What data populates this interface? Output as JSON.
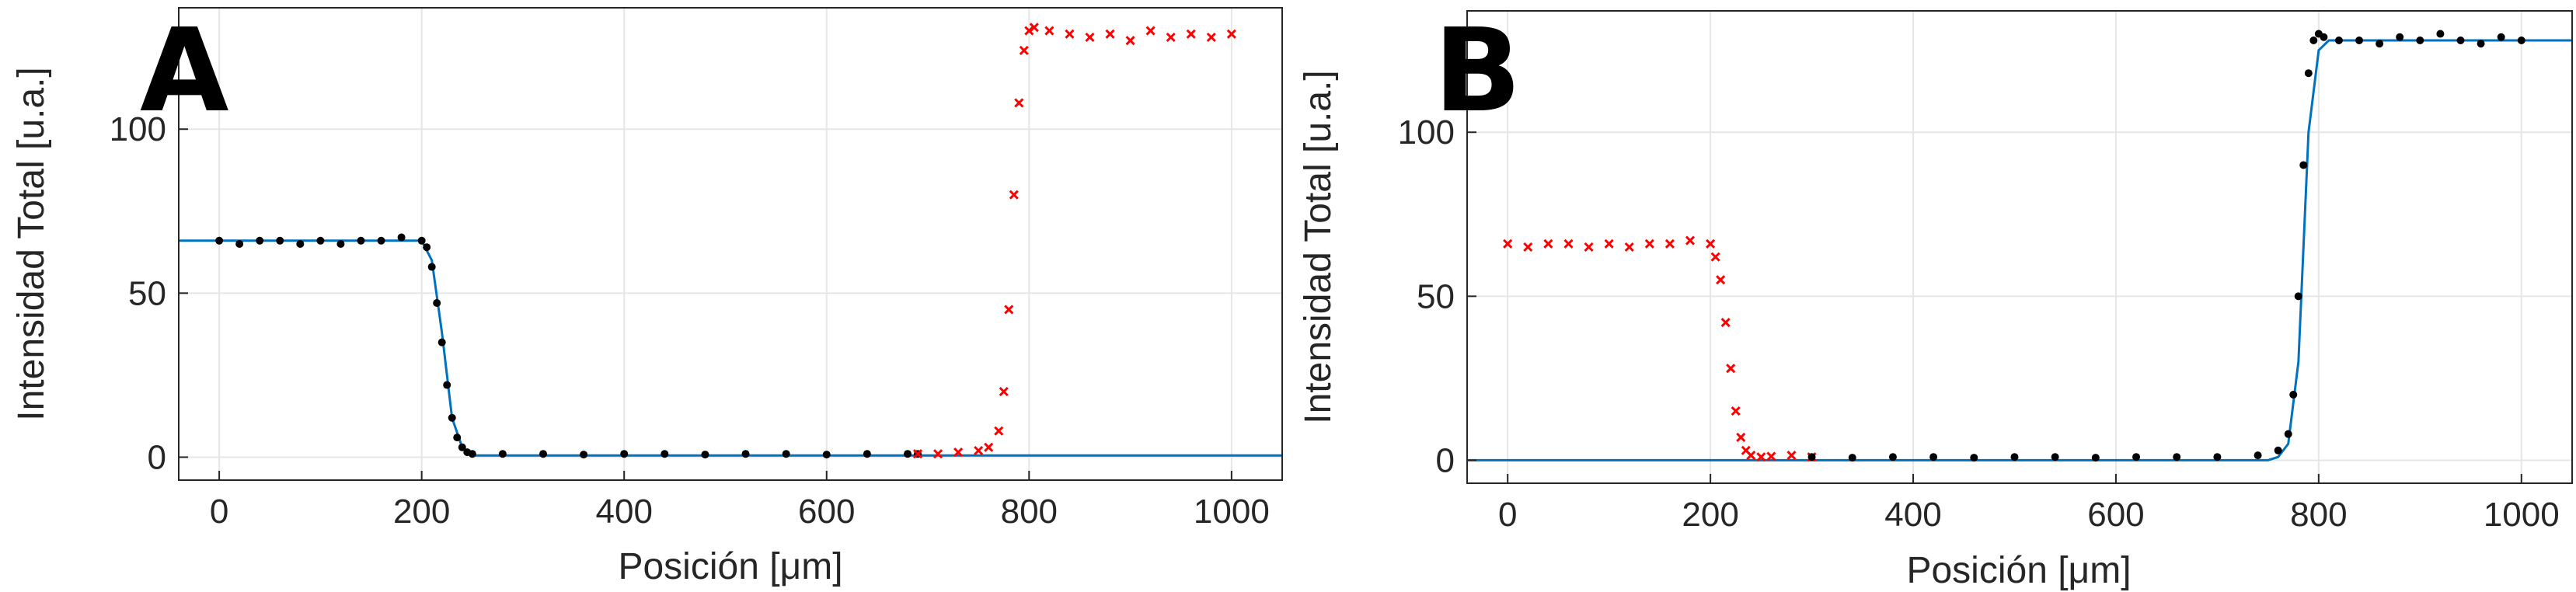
{
  "chart_data": [
    {
      "panel": "A",
      "type": "scatter",
      "xlabel": "Posición [μm]",
      "ylabel": "Intensidad Total [u.a.]",
      "xlim": [
        -40,
        1050
      ],
      "ylim": [
        -7,
        137
      ],
      "xticks": [
        0,
        200,
        400,
        600,
        800,
        1000
      ],
      "yticks": [
        0,
        50,
        100
      ],
      "grid": true,
      "series": [
        {
          "kind": "fit",
          "color": "#0072BD",
          "x": [
            -40,
            0,
            200,
            210,
            220,
            230,
            240,
            250,
            1050
          ],
          "y": [
            66,
            66,
            66,
            60,
            38,
            12,
            3,
            0.5,
            0.5
          ]
        },
        {
          "kind": "data",
          "marker": "dot",
          "color": "#000000",
          "x": [
            0,
            20,
            40,
            60,
            80,
            100,
            120,
            140,
            160,
            180,
            200,
            205,
            210,
            215,
            220,
            225,
            230,
            235,
            240,
            245,
            250,
            280,
            320,
            360,
            400,
            440,
            480,
            520,
            560,
            600,
            640,
            680,
            690
          ],
          "y": [
            66,
            65,
            66,
            66,
            65,
            66,
            65,
            66,
            66,
            67,
            66,
            64,
            58,
            47,
            35,
            22,
            12,
            6,
            3,
            1.5,
            1,
            1,
            1,
            0.8,
            1,
            1,
            0.8,
            1,
            1,
            0.8,
            1,
            1,
            1
          ]
        },
        {
          "kind": "data",
          "marker": "x",
          "color": "#ff0000",
          "x": [
            690,
            710,
            730,
            750,
            760,
            770,
            775,
            780,
            785,
            790,
            795,
            800,
            805,
            820,
            840,
            860,
            880,
            900,
            920,
            940,
            960,
            980,
            1000
          ],
          "y": [
            1,
            1,
            1.5,
            2,
            3,
            8,
            20,
            45,
            80,
            108,
            124,
            130,
            131,
            130,
            129,
            128,
            129,
            127,
            130,
            128,
            129,
            128,
            129
          ]
        }
      ]
    },
    {
      "panel": "B",
      "type": "scatter",
      "xlabel": "Posición [μm]",
      "ylabel": "Intensidad Total [u.a.]",
      "xlim": [
        -40,
        1050
      ],
      "ylim": [
        -7,
        137
      ],
      "xticks": [
        0,
        200,
        400,
        600,
        800,
        1000
      ],
      "yticks": [
        0,
        50,
        100
      ],
      "grid": true,
      "series": [
        {
          "kind": "fit",
          "color": "#0072BD",
          "x": [
            -40,
            750,
            760,
            770,
            780,
            790,
            800,
            810,
            1050
          ],
          "y": [
            0,
            0,
            1,
            5,
            30,
            100,
            125,
            128,
            128
          ]
        },
        {
          "kind": "data",
          "marker": "x",
          "color": "#ff0000",
          "x": [
            0,
            20,
            40,
            60,
            80,
            100,
            120,
            140,
            160,
            180,
            200,
            205,
            210,
            215,
            220,
            225,
            230,
            235,
            240,
            250,
            260,
            280,
            300
          ],
          "y": [
            66,
            65,
            66,
            66,
            65,
            66,
            65,
            66,
            66,
            67,
            66,
            62,
            55,
            42,
            28,
            15,
            7,
            3,
            1.5,
            1,
            1.2,
            1.5,
            1
          ]
        },
        {
          "kind": "data",
          "marker": "dot",
          "color": "#000000",
          "x": [
            300,
            340,
            380,
            420,
            460,
            500,
            540,
            580,
            620,
            660,
            700,
            740,
            760,
            770,
            775,
            780,
            785,
            790,
            795,
            800,
            805,
            820,
            840,
            860,
            880,
            900,
            920,
            940,
            960,
            980,
            1000
          ],
          "y": [
            1,
            0.8,
            1,
            1,
            0.8,
            1,
            1,
            0.8,
            1,
            1,
            1,
            1.5,
            3,
            8,
            20,
            50,
            90,
            118,
            128,
            130,
            129,
            128,
            128,
            127,
            129,
            128,
            130,
            128,
            127,
            129,
            128
          ]
        }
      ]
    }
  ]
}
